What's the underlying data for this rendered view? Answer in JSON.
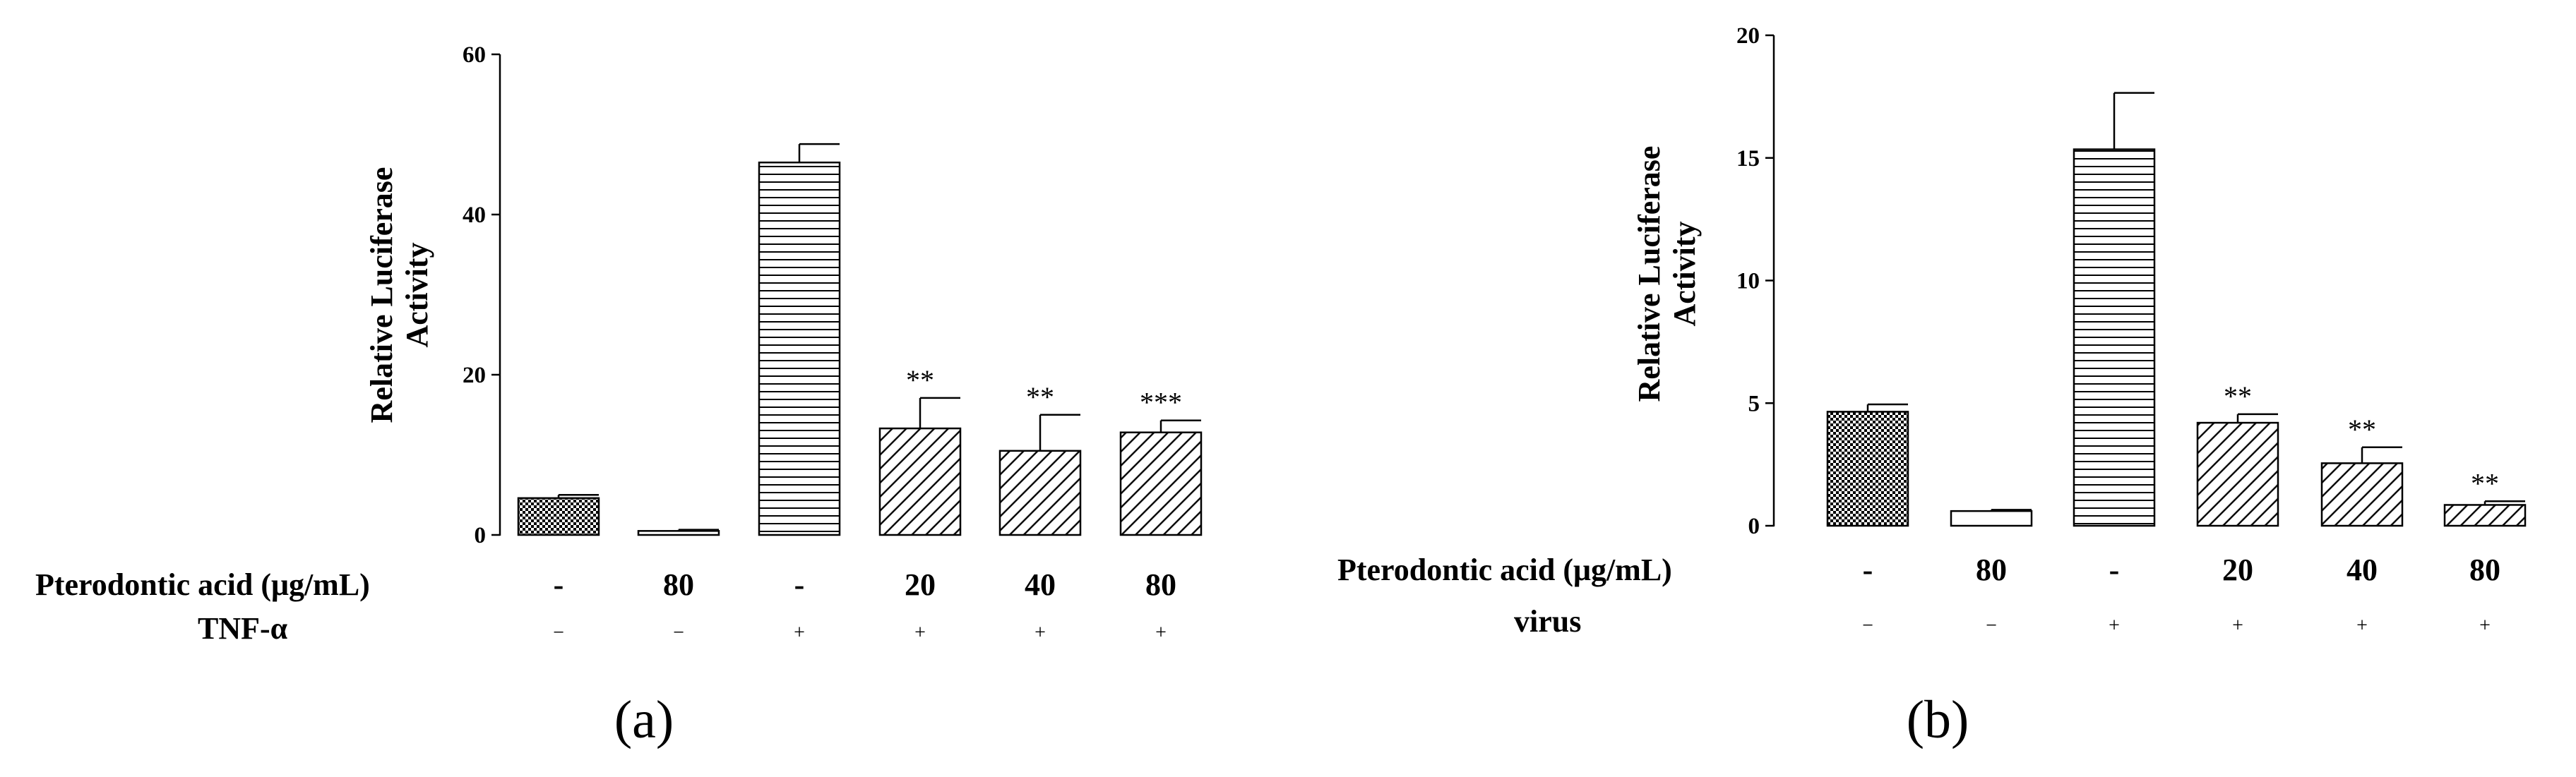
{
  "chart_data": [
    {
      "type": "bar",
      "panel_label": "(a)",
      "ylabel": [
        "Relative Luciferase",
        "Activity"
      ],
      "ylim": [
        0,
        60
      ],
      "yticks": [
        "0",
        "20",
        "40",
        "60"
      ],
      "row1_label": "Pterodontic  acid (μg/mL)",
      "row1_values": [
        "-",
        "80",
        "-",
        "20",
        "40",
        "80"
      ],
      "row2_label": "TNF-α",
      "row2_values": [
        "−",
        "−",
        "+",
        "+",
        "+",
        "+"
      ],
      "values": [
        4.6,
        0.5,
        46.5,
        13.3,
        10.5,
        12.8
      ],
      "errors": [
        0.4,
        0.15,
        2.3,
        3.8,
        4.5,
        1.5
      ],
      "significance": [
        "",
        "",
        "",
        "**",
        "**",
        "***"
      ],
      "patterns": [
        "checker",
        "none",
        "hlines",
        "diag",
        "diag",
        "diag"
      ]
    },
    {
      "type": "bar",
      "panel_label": "(b)",
      "ylabel": [
        "Relative Luciferase",
        "Activity"
      ],
      "ylim": [
        0,
        20
      ],
      "yticks": [
        "0",
        "5",
        "10",
        "15",
        "20"
      ],
      "row1_label": "Pterodontic  acid (μg/mL)",
      "row1_values": [
        "-",
        "80",
        "-",
        "20",
        "40",
        "80"
      ],
      "row2_label": "virus",
      "row2_values": [
        "−",
        "−",
        "+",
        "+",
        "+",
        "+"
      ],
      "values": [
        4.65,
        0.6,
        15.35,
        4.2,
        2.55,
        0.85
      ],
      "errors": [
        0.3,
        0.05,
        2.3,
        0.35,
        0.65,
        0.15
      ],
      "significance": [
        "",
        "",
        "",
        "**",
        "**",
        "**"
      ],
      "patterns": [
        "checker",
        "none",
        "hlines",
        "diag",
        "diag",
        "diag"
      ]
    }
  ]
}
